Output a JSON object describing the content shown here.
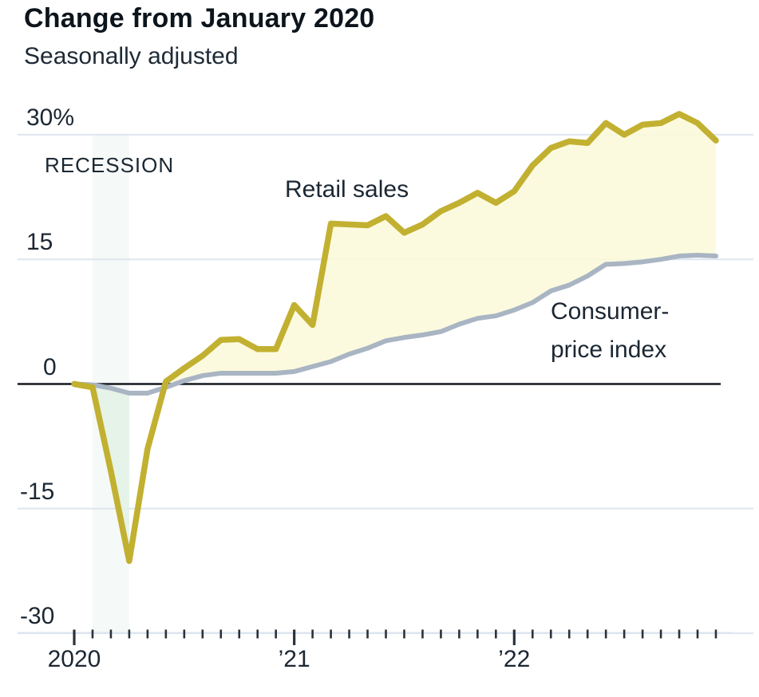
{
  "header": {
    "title": "Change from January 2020",
    "subtitle": "Seasonally adjusted"
  },
  "labels": {
    "recession": "RECESSION",
    "retail": "Retail sales",
    "cpi_line1": "Consumer-",
    "cpi_line2": "price index"
  },
  "colors": {
    "retail_line": "#c2b031",
    "cpi_line": "#a9b5c3",
    "between_fill": "#fcf9da",
    "recession_gap_fill": "#e4f2e6",
    "recession_band": "#dcebe2",
    "gridline": "#dde5ee",
    "zero_line": "#15191f",
    "tick": "#29323c",
    "text": "#1b2733"
  },
  "chart_data": {
    "type": "line",
    "title": "Change from January 2020",
    "subtitle": "Seasonally adjusted",
    "unit": "percent change from January 2020",
    "grid": true,
    "legend_position": "inline-labels",
    "ylim": [
      -30,
      33
    ],
    "y_ticks": [
      {
        "label": "30%",
        "value": 30
      },
      {
        "label": "15",
        "value": 15
      },
      {
        "label": "0",
        "value": 0
      },
      {
        "label": "-15",
        "value": -15
      },
      {
        "label": "-30",
        "value": -30
      }
    ],
    "x_ticks": [
      {
        "label": "2020",
        "month_index": 0
      },
      {
        "label": "’21",
        "month_index": 12
      },
      {
        "label": "’22",
        "month_index": 24
      }
    ],
    "recession_band_months": [
      1,
      3
    ],
    "categories": [
      "2020-01",
      "2020-02",
      "2020-03",
      "2020-04",
      "2020-05",
      "2020-06",
      "2020-07",
      "2020-08",
      "2020-09",
      "2020-10",
      "2020-11",
      "2020-12",
      "2021-01",
      "2021-02",
      "2021-03",
      "2021-04",
      "2021-05",
      "2021-06",
      "2021-07",
      "2021-08",
      "2021-09",
      "2021-10",
      "2021-11",
      "2021-12",
      "2022-01",
      "2022-02",
      "2022-03",
      "2022-04",
      "2022-05",
      "2022-06",
      "2022-07",
      "2022-08",
      "2022-09",
      "2022-10",
      "2022-11",
      "2022-12"
    ],
    "series": [
      {
        "name": "Retail sales",
        "values": [
          0,
          -0.4,
          -10.5,
          -21.3,
          -7.8,
          0.3,
          1.9,
          3.4,
          5.3,
          5.4,
          4.2,
          4.2,
          9.5,
          7.1,
          19.3,
          19.2,
          19.1,
          20.2,
          18.2,
          19.2,
          20.8,
          21.8,
          23.0,
          21.8,
          23.2,
          26.3,
          28.4,
          29.2,
          29.0,
          31.4,
          30.0,
          31.2,
          31.4,
          32.5,
          31.4,
          29.3
        ]
      },
      {
        "name": "Consumer-price index",
        "values": [
          0,
          -0.1,
          -0.5,
          -1.1,
          -1.1,
          -0.4,
          0.4,
          1.0,
          1.3,
          1.3,
          1.3,
          1.3,
          1.5,
          2.1,
          2.7,
          3.6,
          4.3,
          5.2,
          5.6,
          5.9,
          6.3,
          7.2,
          7.9,
          8.2,
          8.9,
          9.8,
          11.2,
          11.9,
          13.0,
          14.4,
          14.5,
          14.7,
          15.0,
          15.4,
          15.5,
          15.4
        ]
      }
    ]
  }
}
